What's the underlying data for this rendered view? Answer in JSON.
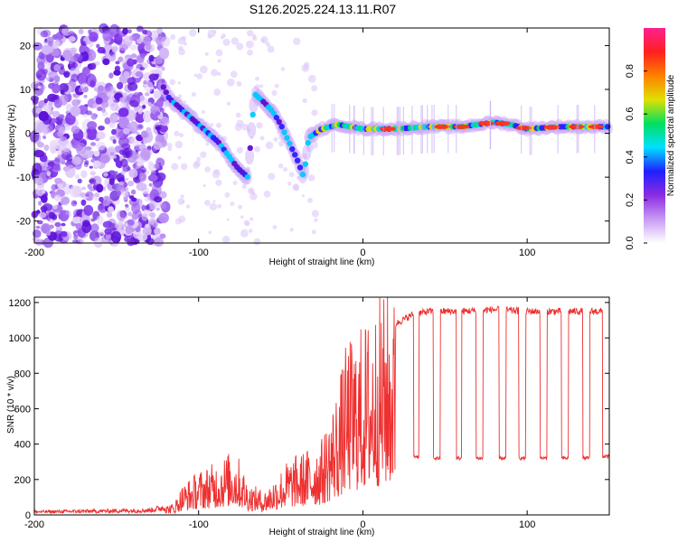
{
  "title": "S126.2025.224.13.11.R07",
  "chart_data": [
    {
      "type": "heatmap",
      "name": "spectrogram",
      "xlabel": "Height of straight line (km)",
      "ylabel": "Frequency (Hz)",
      "xlim": [
        -200,
        150
      ],
      "ylim": [
        -25,
        24
      ],
      "x_ticks": [
        -200,
        -100,
        0,
        100
      ],
      "y_ticks": [
        20,
        10,
        0,
        -10,
        -20
      ],
      "colorbar": {
        "label": "Normalized spectral amplitude",
        "range": [
          0,
          1
        ],
        "ticks": [
          0.0,
          0.2,
          0.4,
          0.6,
          0.8
        ],
        "tick_labels": [
          "0.0",
          "0.2",
          "0.4",
          "0.6",
          "0.8"
        ],
        "colors": [
          "#ffffff",
          "#c89af5",
          "#8a2be2",
          "#2020ff",
          "#00e0ff",
          "#00e060",
          "#e0e000",
          "#ff8000",
          "#ff2020",
          "#ff2090"
        ]
      },
      "ridge": [
        [
          -122,
          11
        ],
        [
          -118,
          8
        ],
        [
          -112,
          6
        ],
        [
          -106,
          4
        ],
        [
          -100,
          2
        ],
        [
          -94,
          0
        ],
        [
          -88,
          -2
        ],
        [
          -82,
          -5
        ],
        [
          -76,
          -8
        ],
        [
          -70,
          -10
        ],
        [
          -66,
          9
        ],
        [
          -60,
          7
        ],
        [
          -55,
          5
        ],
        [
          -50,
          2
        ],
        [
          -45,
          -2
        ],
        [
          -40,
          -6
        ],
        [
          -36,
          -10
        ],
        [
          -33,
          -1
        ],
        [
          -25,
          1
        ],
        [
          -15,
          2
        ],
        [
          0,
          1
        ],
        [
          20,
          1
        ],
        [
          40,
          1.5
        ],
        [
          60,
          1.5
        ],
        [
          80,
          2.5
        ],
        [
          90,
          2
        ],
        [
          100,
          1
        ],
        [
          120,
          1.5
        ],
        [
          150,
          1.5
        ]
      ]
    },
    {
      "type": "line",
      "name": "snr",
      "xlabel": "Height of straight line (km)",
      "ylabel": "SNR (10 * v/v)",
      "xlim": [
        -200,
        150
      ],
      "ylim": [
        0,
        1230
      ],
      "x_ticks": [
        -200,
        -100,
        0,
        100
      ],
      "y_ticks": [
        0,
        200,
        400,
        600,
        800,
        1000,
        1200
      ],
      "color": "#ee3030",
      "envelope": [
        [
          -200,
          20
        ],
        [
          -160,
          25
        ],
        [
          -130,
          30
        ],
        [
          -115,
          60
        ],
        [
          -110,
          150
        ],
        [
          -100,
          220
        ],
        [
          -90,
          260
        ],
        [
          -80,
          320
        ],
        [
          -75,
          280
        ],
        [
          -70,
          160
        ],
        [
          -60,
          120
        ],
        [
          -45,
          280
        ],
        [
          -35,
          320
        ],
        [
          -25,
          380
        ],
        [
          -15,
          650
        ],
        [
          -10,
          850
        ],
        [
          -5,
          900
        ],
        [
          0,
          950
        ],
        [
          5,
          1000
        ],
        [
          10,
          1080
        ],
        [
          15,
          1100
        ],
        [
          20,
          1080
        ],
        [
          30,
          1130
        ],
        [
          40,
          1150
        ],
        [
          60,
          1150
        ],
        [
          80,
          1160
        ],
        [
          100,
          1150
        ],
        [
          120,
          1150
        ],
        [
          150,
          1150
        ]
      ],
      "dips": [
        {
          "start": 31,
          "end": 34,
          "value": 330
        },
        {
          "start": 43,
          "end": 47,
          "value": 320
        },
        {
          "start": 57,
          "end": 60,
          "value": 320
        },
        {
          "start": 69,
          "end": 73,
          "value": 320
        },
        {
          "start": 83,
          "end": 87,
          "value": 320
        },
        {
          "start": 95,
          "end": 99,
          "value": 320
        },
        {
          "start": 108,
          "end": 112,
          "value": 320
        },
        {
          "start": 121,
          "end": 125,
          "value": 320
        },
        {
          "start": 134,
          "end": 138,
          "value": 320
        },
        {
          "start": 146,
          "end": 150,
          "value": 330
        }
      ]
    }
  ]
}
